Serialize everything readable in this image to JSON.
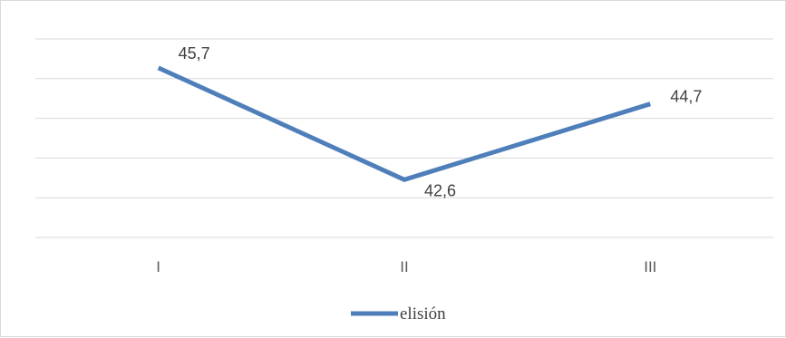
{
  "chart_data": {
    "type": "line",
    "categories": [
      "I",
      "II",
      "III"
    ],
    "series": [
      {
        "name": "elisión",
        "values": [
          45.7,
          42.6,
          44.7
        ],
        "labels": [
          "45,7",
          "42,6",
          "44,7"
        ],
        "color": "#4f7fba"
      }
    ],
    "title": "",
    "xlabel": "",
    "ylabel": "",
    "ylim": [
      41,
      46.5
    ],
    "grid": true,
    "legend": "bottom"
  }
}
